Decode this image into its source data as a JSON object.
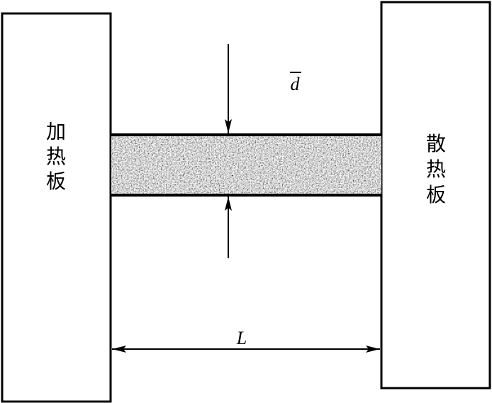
{
  "diagram": {
    "heater_plate": {
      "chars": [
        "加",
        "热",
        "板"
      ]
    },
    "heat_sink_plate": {
      "chars": [
        "散",
        "热",
        "板"
      ]
    },
    "thickness_label": "d",
    "length_label": "L",
    "sample_texture": "speckled-gray-noise"
  }
}
